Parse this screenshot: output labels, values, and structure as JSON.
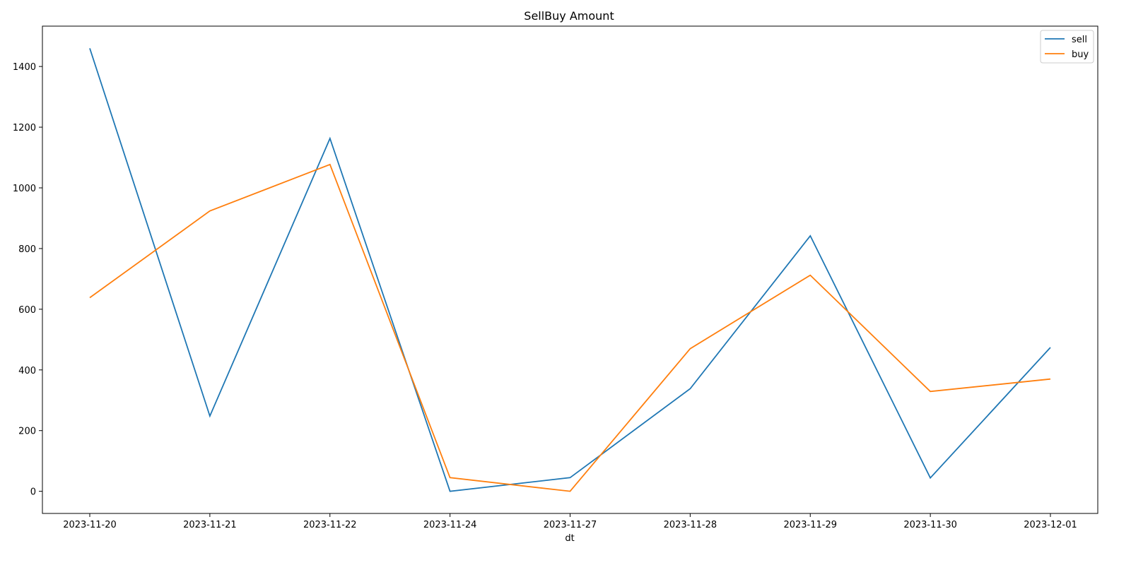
{
  "chart_data": {
    "type": "line",
    "title": "SellBuy Amount",
    "xlabel": "dt",
    "ylabel": "",
    "categories": [
      "2023-11-20",
      "2023-11-21",
      "2023-11-22",
      "2023-11-24",
      "2023-11-27",
      "2023-11-28",
      "2023-11-29",
      "2023-11-30",
      "2023-12-01"
    ],
    "series": [
      {
        "name": "sell",
        "color": "#1f77b4",
        "values": [
          1460,
          248,
          1163,
          0,
          45,
          338,
          842,
          44,
          474
        ]
      },
      {
        "name": "buy",
        "color": "#ff7f0e",
        "values": [
          638,
          924,
          1077,
          45,
          0,
          470,
          712,
          329,
          370
        ]
      }
    ],
    "ylim": [
      -73,
      1533
    ],
    "yticks": [
      0,
      200,
      400,
      600,
      800,
      1000,
      1200,
      1400
    ],
    "grid": false,
    "legend_position": "top-right"
  }
}
